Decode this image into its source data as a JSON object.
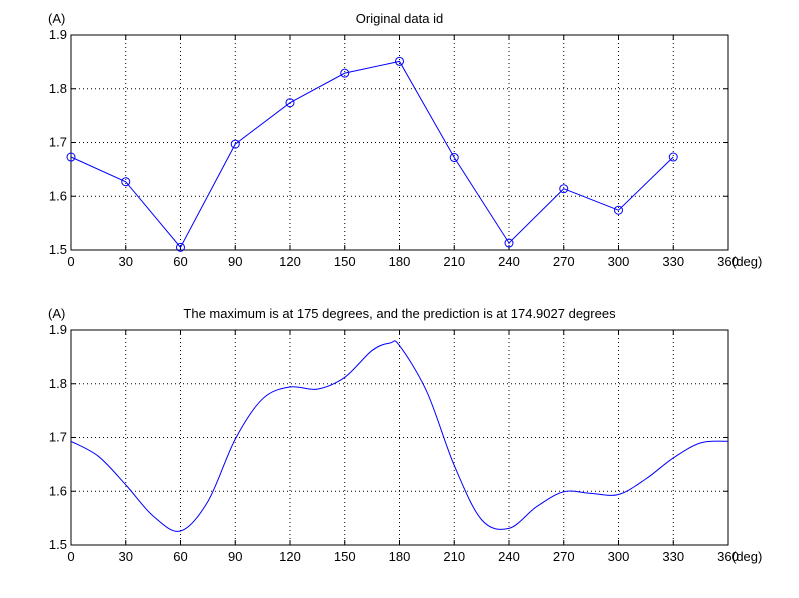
{
  "chart_data": [
    {
      "type": "line",
      "title": "Original data id",
      "ylabel": "(A)",
      "xlabel": "(deg)",
      "xlim": [
        0,
        360
      ],
      "ylim": [
        1.5,
        1.9
      ],
      "xticks": [
        "0",
        "30",
        "60",
        "90",
        "120",
        "150",
        "180",
        "210",
        "240",
        "270",
        "300",
        "330",
        "360"
      ],
      "yticks": [
        "1.5",
        "1.6",
        "1.7",
        "1.8",
        "1.9"
      ],
      "grid": true,
      "marker": "circle",
      "color": "#0000ff",
      "series": [
        {
          "x": [
            0,
            30,
            60,
            90,
            120,
            150,
            180,
            210,
            240,
            270,
            300,
            330
          ],
          "y": [
            1.673,
            1.627,
            1.505,
            1.697,
            1.774,
            1.829,
            1.851,
            1.672,
            1.513,
            1.614,
            1.574,
            1.673
          ]
        }
      ]
    },
    {
      "type": "line",
      "title": "The maximum is at 175 degrees, and the prediction is at 174.9027 degrees",
      "ylabel": "(A)",
      "xlabel": "(deg)",
      "xlim": [
        0,
        360
      ],
      "ylim": [
        1.5,
        1.9
      ],
      "xticks": [
        "0",
        "30",
        "60",
        "90",
        "120",
        "150",
        "180",
        "210",
        "240",
        "270",
        "300",
        "330",
        "360"
      ],
      "yticks": [
        "1.5",
        "1.6",
        "1.7",
        "1.8",
        "1.9"
      ],
      "grid": true,
      "marker": "none",
      "color": "#0000ff",
      "series": [
        {
          "x": [
            0,
            15,
            30,
            45,
            60,
            75,
            90,
            105,
            120,
            135,
            150,
            165,
            175,
            180,
            195,
            210,
            225,
            240,
            255,
            270,
            285,
            300,
            315,
            330,
            345,
            360
          ],
          "y": [
            1.693,
            1.665,
            1.612,
            1.554,
            1.526,
            1.581,
            1.697,
            1.772,
            1.794,
            1.79,
            1.812,
            1.862,
            1.876,
            1.871,
            1.785,
            1.648,
            1.547,
            1.531,
            1.571,
            1.599,
            1.596,
            1.594,
            1.623,
            1.662,
            1.69,
            1.693
          ]
        }
      ]
    }
  ]
}
